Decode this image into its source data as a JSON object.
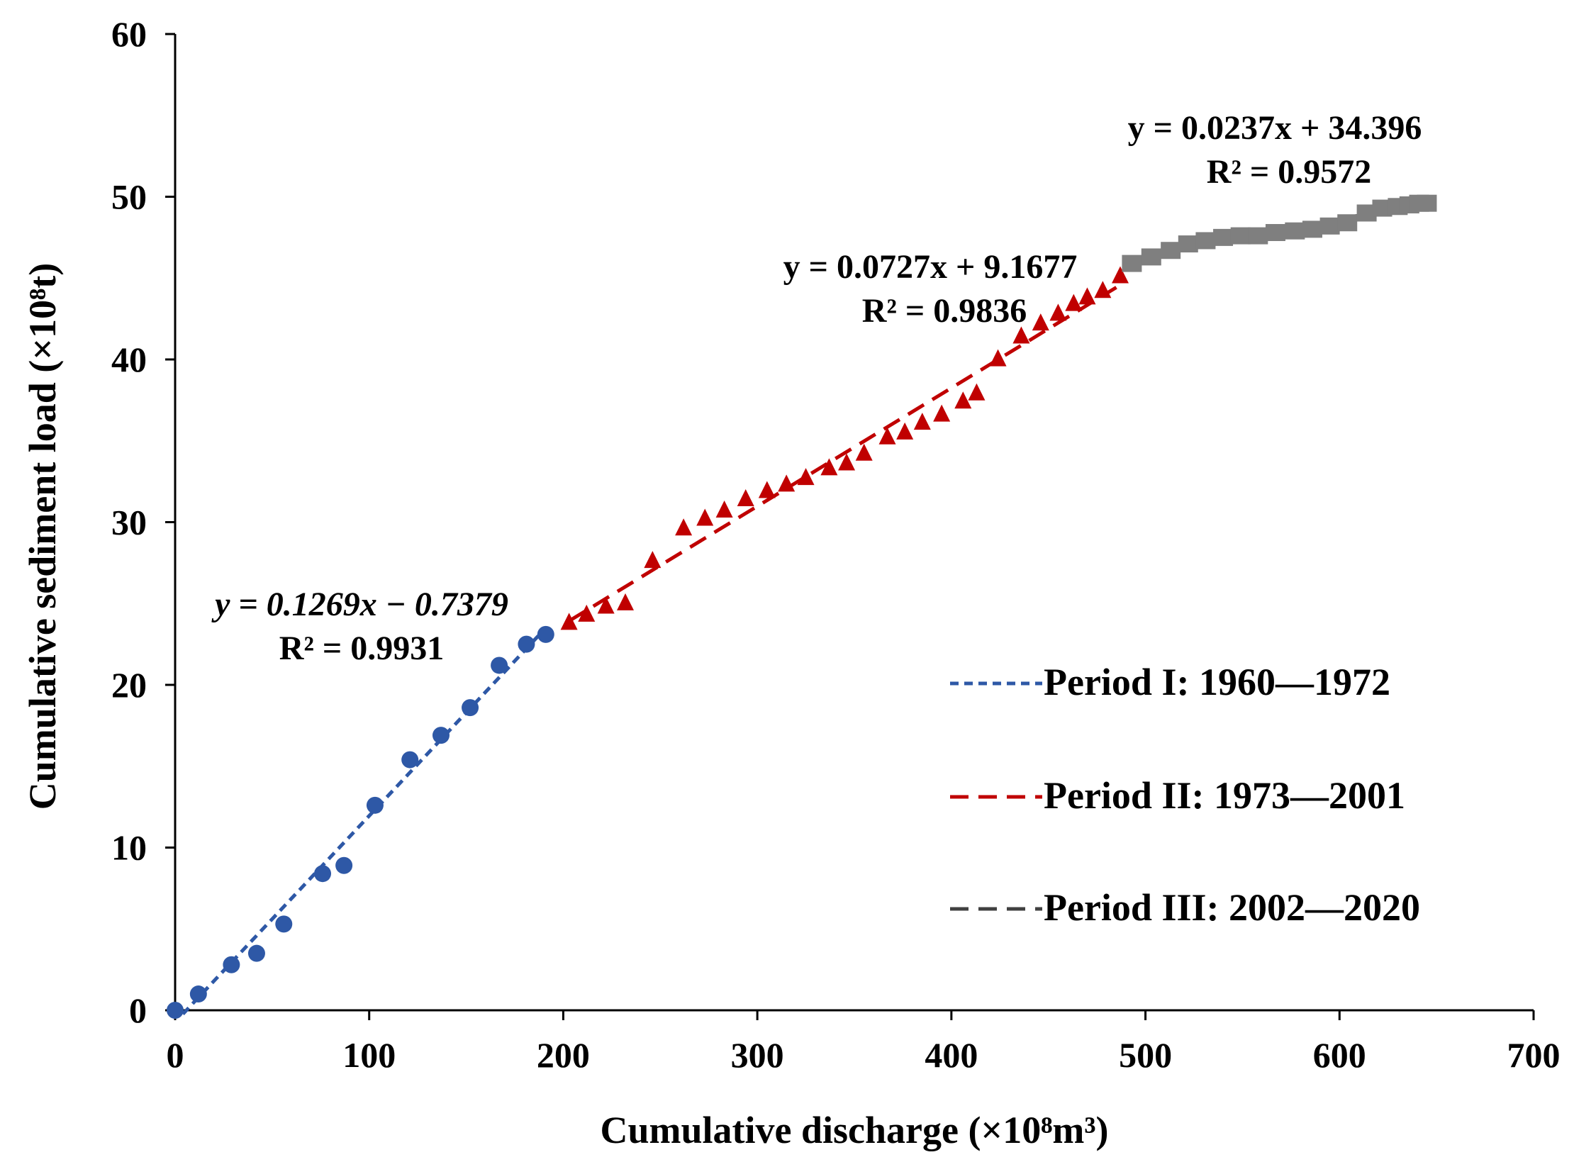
{
  "chart_data": {
    "type": "scatter",
    "xlabel": "Cumulative discharge (×10⁸m³)",
    "ylabel": "Cumulative sediment load (×10⁸t)",
    "xlim": [
      0,
      700
    ],
    "ylim": [
      0,
      60
    ],
    "xticks": [
      "0",
      "100",
      "200",
      "300",
      "400",
      "500",
      "600",
      "700"
    ],
    "yticks": [
      "0",
      "10",
      "20",
      "30",
      "40",
      "50",
      "60"
    ],
    "grid": false,
    "legend_position": "right",
    "series": [
      {
        "name": "Period I: 1960—1972",
        "color": "#2e58a6",
        "marker": "circle",
        "line_style": "short-dash",
        "x": [
          0,
          12,
          29,
          42,
          56,
          76,
          87,
          103,
          121,
          137,
          152,
          167,
          181,
          191
        ],
        "y": [
          0,
          1.0,
          2.8,
          3.5,
          5.3,
          8.4,
          8.9,
          12.6,
          15.4,
          16.9,
          18.6,
          21.2,
          22.5,
          23.1
        ],
        "fit": {
          "slope": 0.1269,
          "intercept": -0.7379,
          "x_range": [
            4,
            190
          ]
        },
        "equation": "y = 0.1269x − 0.7379",
        "r2": "R² = 0.9931"
      },
      {
        "name": "Period II: 1973—2001",
        "color": "#c00000",
        "marker": "triangle",
        "line_style": "dash",
        "x": [
          203,
          212,
          222,
          232,
          246,
          262,
          273,
          283,
          294,
          305,
          315,
          325,
          337,
          346,
          355,
          367,
          376,
          385,
          395,
          406,
          413,
          424,
          436,
          446,
          455,
          463,
          470,
          478,
          487
        ],
        "y": [
          23.8,
          24.3,
          24.8,
          25.0,
          27.6,
          29.6,
          30.2,
          30.7,
          31.4,
          31.9,
          32.3,
          32.7,
          33.3,
          33.6,
          34.2,
          35.2,
          35.5,
          36.1,
          36.6,
          37.4,
          37.9,
          40.0,
          41.4,
          42.2,
          42.8,
          43.4,
          43.8,
          44.2,
          45.1
        ],
        "fit": {
          "slope": 0.0727,
          "intercept": 9.1677,
          "x_range": [
            203,
            485
          ]
        },
        "equation": "y = 0.0727x + 9.1677",
        "r2": "R² = 0.9836"
      },
      {
        "name": "Period III: 2002—2020",
        "color": "#7f7f7f",
        "marker": "square",
        "line_style": "dash",
        "line_color": "#404040",
        "x": [
          493,
          503,
          513,
          522,
          531,
          540,
          549,
          558,
          567,
          577,
          586,
          595,
          604,
          614,
          622,
          630,
          636,
          641,
          645
        ],
        "y": [
          45.9,
          46.3,
          46.7,
          47.1,
          47.3,
          47.5,
          47.6,
          47.6,
          47.8,
          47.9,
          48.0,
          48.2,
          48.4,
          49.0,
          49.3,
          49.4,
          49.5,
          49.6,
          49.6
        ],
        "fit": {
          "slope": 0.0237,
          "intercept": 34.396,
          "x_range": [
            491,
            646
          ]
        },
        "equation": "y = 0.0237x + 34.396",
        "r2": "R² = 0.9572"
      }
    ]
  }
}
